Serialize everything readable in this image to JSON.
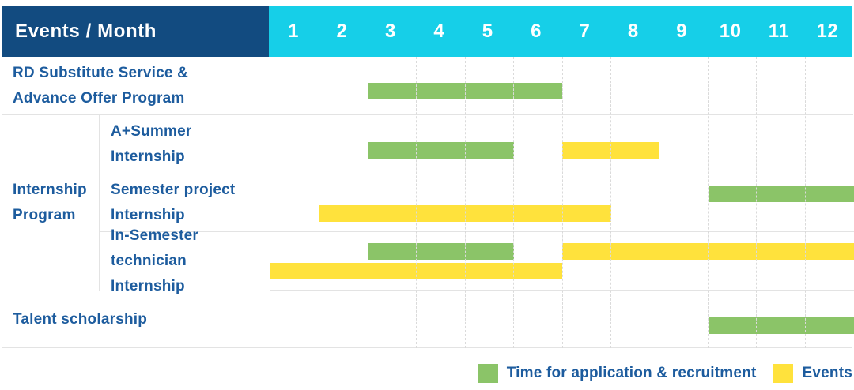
{
  "header": {
    "title": "Events / Month",
    "months": [
      "1",
      "2",
      "3",
      "4",
      "5",
      "6",
      "7",
      "8",
      "9",
      "10",
      "11",
      "12"
    ]
  },
  "labels": {
    "rd": [
      "RD Substitute Service &",
      "Advance Offer Program"
    ],
    "group": [
      "Internship",
      "Program"
    ],
    "summer": [
      "A+Summer",
      "Internship"
    ],
    "semester": [
      "Semester project",
      "Internship"
    ],
    "insemester": [
      "In-Semester",
      "technician Internship"
    ],
    "talent": [
      "Talent scholarship"
    ]
  },
  "colors": {
    "header_bg": "#124b80",
    "months_bg": "#16cfe8",
    "label_text": "#1d5c9e",
    "application": "#8bc468",
    "events": "#ffe23c"
  },
  "chart_data": {
    "type": "gantt",
    "title": "Events / Month",
    "x_axis": {
      "unit": "month",
      "ticks": [
        1,
        2,
        3,
        4,
        5,
        6,
        7,
        8,
        9,
        10,
        11,
        12
      ],
      "range": [
        1,
        12
      ]
    },
    "legend_position": "bottom-right",
    "series": [
      {
        "name": "Time for application & recruitment",
        "color": "#8bc468"
      },
      {
        "name": "Events",
        "color": "#ffe23c"
      }
    ],
    "rows": [
      {
        "label": "RD Substitute Service & Advance Offer Program",
        "group": null,
        "bars": [
          {
            "series": "Time for application & recruitment",
            "start_month": 3,
            "end_month": 6,
            "lane": "single"
          }
        ]
      },
      {
        "label": "A+Summer Internship",
        "group": "Internship Program",
        "bars": [
          {
            "series": "Time for application & recruitment",
            "start_month": 3,
            "end_month": 5,
            "lane": "single"
          },
          {
            "series": "Events",
            "start_month": 7,
            "end_month": 8,
            "lane": "single"
          }
        ]
      },
      {
        "label": "Semester project Internship",
        "group": "Internship Program",
        "bars": [
          {
            "series": "Time for application & recruitment",
            "start_month": 10,
            "end_month": 12,
            "lane": "upper"
          },
          {
            "series": "Events",
            "start_month": 2,
            "end_month": 7,
            "lane": "lower"
          }
        ]
      },
      {
        "label": "In-Semester technician Internship",
        "group": "Internship Program",
        "bars": [
          {
            "series": "Time for application & recruitment",
            "start_month": 3,
            "end_month": 5,
            "lane": "upper"
          },
          {
            "series": "Events",
            "start_month": 7,
            "end_month": 12,
            "lane": "upper"
          },
          {
            "series": "Events",
            "start_month": 1,
            "end_month": 6,
            "lane": "lower"
          }
        ]
      },
      {
        "label": "Talent scholarship",
        "group": null,
        "bars": [
          {
            "series": "Time for application & recruitment",
            "start_month": 10,
            "end_month": 12,
            "lane": "single"
          }
        ]
      }
    ],
    "legend": [
      {
        "label": "Time for application & recruitment",
        "color": "#8bc468"
      },
      {
        "label": "Events",
        "color": "#ffe23c"
      }
    ]
  }
}
